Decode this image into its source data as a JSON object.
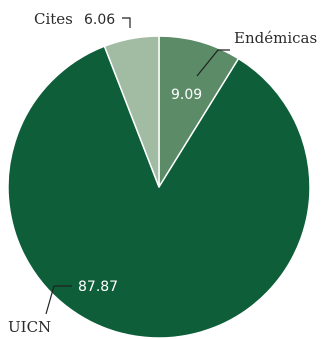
{
  "chart_data": {
    "type": "pie",
    "slices": [
      {
        "label": "Endémicas",
        "value": 9.09,
        "display": "9.09",
        "color": "#5b8b67"
      },
      {
        "label": "UICN",
        "value": 87.87,
        "display": "87.87",
        "color": "#0d5e39"
      },
      {
        "label": "Cites",
        "value": 6.06,
        "display": "6.06",
        "color": "#a2bca3"
      }
    ],
    "start": "top",
    "direction": "clockwise"
  }
}
